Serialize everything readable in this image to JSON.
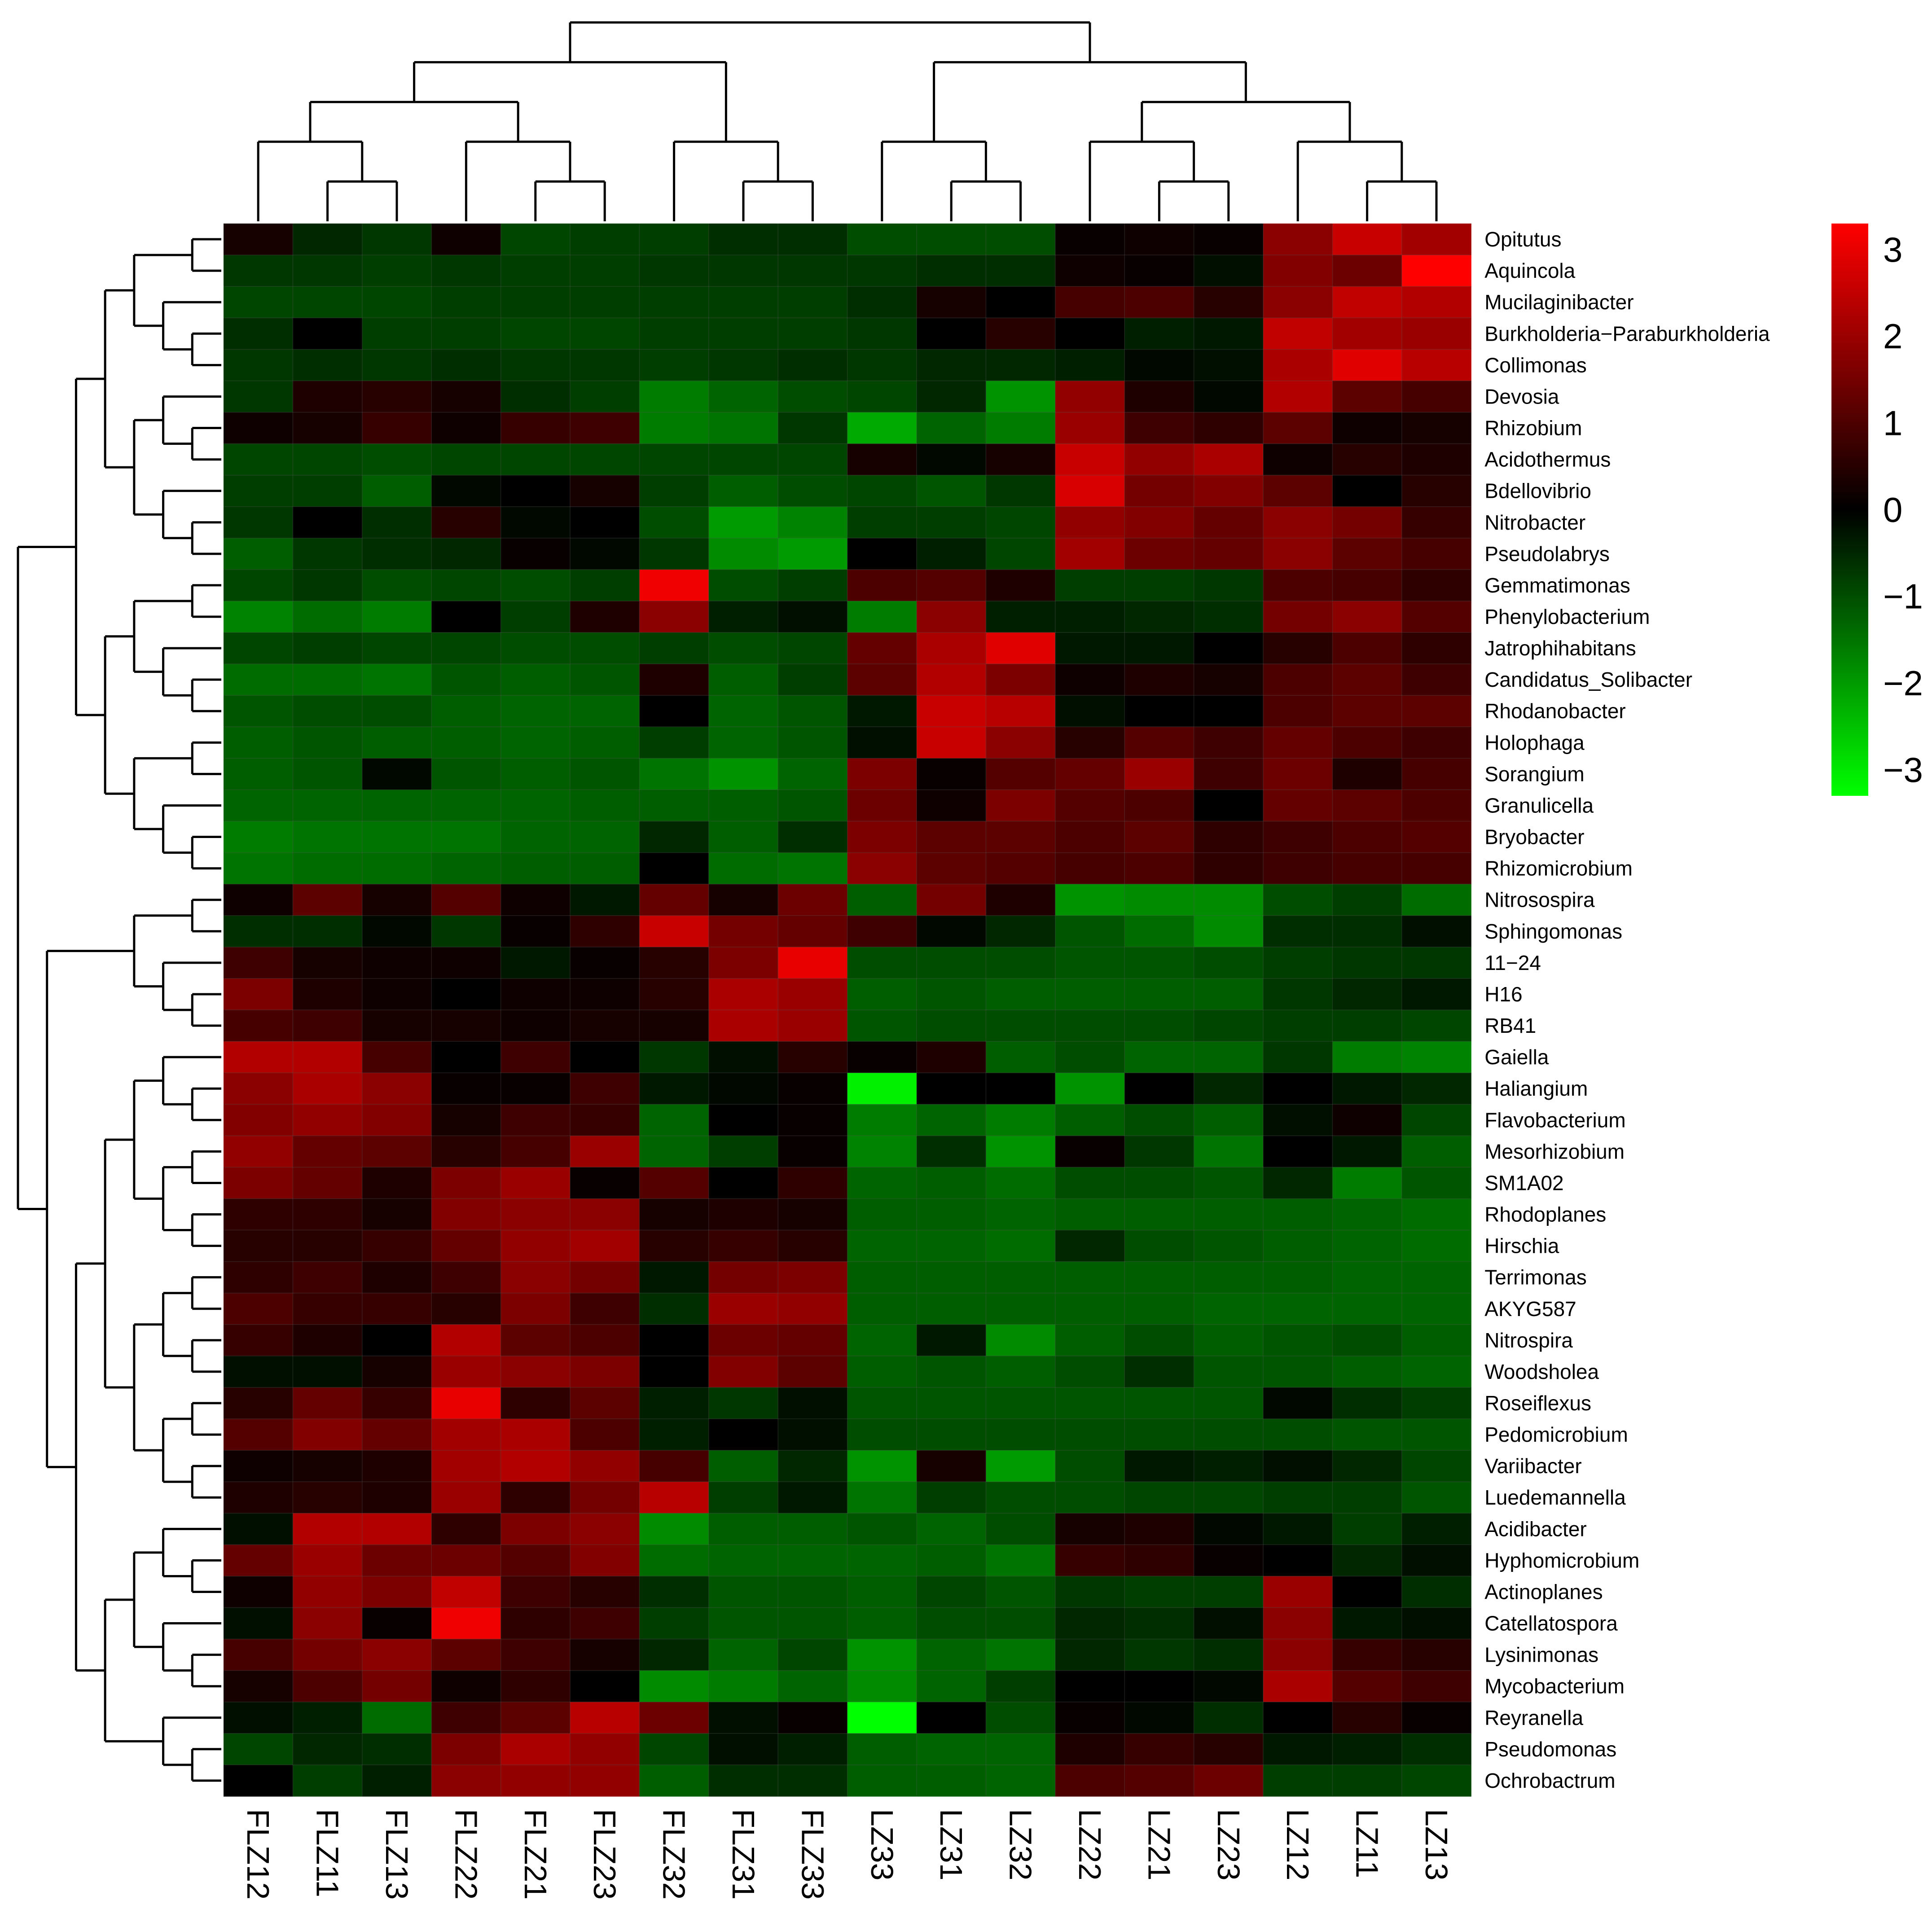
{
  "chart_data": {
    "type": "heatmap",
    "title": "",
    "xlabel": "",
    "ylabel": "",
    "columns": [
      "FLZ12",
      "FLZ11",
      "FLZ13",
      "FLZ22",
      "FLZ21",
      "FLZ23",
      "FLZ32",
      "FLZ31",
      "FLZ33",
      "LZ33",
      "LZ31",
      "LZ32",
      "LZ22",
      "LZ21",
      "LZ23",
      "LZ12",
      "LZ11",
      "LZ13"
    ],
    "rows": [
      "Opitutus",
      "Aquincola",
      "Mucilaginibacter",
      "Burkholderia−Paraburkholderia",
      "Collimonas",
      "Devosia",
      "Rhizobium",
      "Acidothermus",
      "Bdellovibrio",
      "Nitrobacter",
      "Pseudolabrys",
      "Gemmatimonas",
      "Phenylobacterium",
      "Jatrophihabitans",
      "Candidatus_Solibacter",
      "Rhodanobacter",
      "Holophaga",
      "Sorangium",
      "Granulicella",
      "Bryobacter",
      "Rhizomicrobium",
      "Nitrosospira",
      "Sphingomonas",
      "11−24",
      "H16",
      "RB41",
      "Gaiella",
      "Haliangium",
      "Flavobacterium",
      "Mesorhizobium",
      "SM1A02",
      "Rhodoplanes",
      "Hirschia",
      "Terrimonas",
      "AKYG587",
      "Nitrospira",
      "Woodsholea",
      "Roseiflexus",
      "Pedomicrobium",
      "Variibacter",
      "Luedemannella",
      "Acidibacter",
      "Hyphomicrobium",
      "Actinoplanes",
      "Catellatospora",
      "Lysinimonas",
      "Mycobacterium",
      "Reyranella",
      "Pseudomonas",
      "Ochrobactrum"
    ],
    "values": [
      [
        0.3,
        -0.5,
        -0.7,
        0.2,
        -0.9,
        -0.8,
        -0.8,
        -0.6,
        -0.6,
        -1.0,
        -1.0,
        -1.0,
        0.1,
        0.2,
        0.1,
        1.8,
        2.6,
        2.1
      ],
      [
        -0.7,
        -0.7,
        -0.8,
        -0.7,
        -0.8,
        -0.8,
        -0.7,
        -0.7,
        -0.7,
        -0.7,
        -0.6,
        -0.6,
        0.2,
        0.1,
        -0.2,
        1.7,
        1.4,
        3.3
      ],
      [
        -0.9,
        -0.9,
        -0.9,
        -0.8,
        -0.8,
        -0.8,
        -0.8,
        -0.8,
        -0.8,
        -0.6,
        0.3,
        0.0,
        0.9,
        1.0,
        0.5,
        1.8,
        2.5,
        2.3
      ],
      [
        -0.6,
        0.0,
        -0.8,
        -0.8,
        -0.9,
        -0.9,
        -0.8,
        -0.8,
        -0.8,
        -0.7,
        0.0,
        0.5,
        0.0,
        -0.4,
        -0.3,
        2.5,
        2.1,
        2.0
      ],
      [
        -0.7,
        -0.6,
        -0.7,
        -0.6,
        -0.7,
        -0.7,
        -0.8,
        -0.7,
        -0.6,
        -0.7,
        -0.5,
        -0.5,
        -0.4,
        -0.1,
        -0.2,
        2.2,
        2.9,
        2.4
      ],
      [
        -0.7,
        0.4,
        0.5,
        0.3,
        -0.6,
        -0.8,
        -1.6,
        -1.3,
        -1.0,
        -0.9,
        -0.5,
        -1.9,
        1.9,
        0.4,
        -0.1,
        2.3,
        1.2,
        0.9
      ],
      [
        0.2,
        0.3,
        0.7,
        0.2,
        0.7,
        0.8,
        -1.6,
        -1.5,
        -0.7,
        -2.2,
        -1.3,
        -1.6,
        2.0,
        0.8,
        0.6,
        1.2,
        0.2,
        0.3
      ],
      [
        -0.9,
        -0.9,
        -1.0,
        -0.9,
        -0.9,
        -0.9,
        -0.9,
        -0.9,
        -0.9,
        0.3,
        -0.1,
        0.3,
        2.6,
        1.9,
        2.2,
        0.2,
        0.5,
        0.4
      ],
      [
        -0.8,
        -0.8,
        -1.2,
        -0.1,
        0.0,
        0.3,
        -0.8,
        -1.2,
        -1.0,
        -0.9,
        -1.1,
        -0.7,
        2.8,
        1.5,
        1.7,
        1.2,
        0.0,
        0.5
      ],
      [
        -0.7,
        0.0,
        -0.6,
        0.5,
        -0.1,
        0.0,
        -1.0,
        -2.0,
        -1.7,
        -0.8,
        -0.8,
        -0.9,
        1.9,
        1.7,
        1.3,
        1.8,
        1.5,
        0.7
      ],
      [
        -1.2,
        -0.7,
        -0.6,
        -0.5,
        0.1,
        -0.1,
        -0.7,
        -1.8,
        -2.0,
        0.0,
        -0.4,
        -0.9,
        2.1,
        1.4,
        1.3,
        1.8,
        1.2,
        0.9
      ],
      [
        -0.9,
        -0.7,
        -1.0,
        -0.9,
        -1.0,
        -0.8,
        3.1,
        -1.0,
        -0.8,
        1.0,
        1.1,
        0.4,
        -0.8,
        -0.8,
        -0.7,
        1.0,
        0.9,
        0.6
      ],
      [
        -1.7,
        -1.4,
        -1.6,
        0.0,
        -0.8,
        0.4,
        1.8,
        -0.4,
        -0.2,
        -1.6,
        1.8,
        -0.4,
        -0.4,
        -0.5,
        -0.6,
        1.5,
        1.8,
        1.1
      ],
      [
        -0.9,
        -0.8,
        -0.9,
        -0.9,
        -1.0,
        -1.0,
        -0.8,
        -1.0,
        -0.9,
        1.3,
        2.2,
        2.9,
        -0.3,
        -0.3,
        0.0,
        0.5,
        1.0,
        0.6
      ],
      [
        -1.4,
        -1.4,
        -1.5,
        -1.1,
        -1.2,
        -1.1,
        0.4,
        -1.2,
        -0.8,
        1.2,
        2.3,
        1.6,
        0.2,
        0.4,
        0.3,
        1.0,
        1.2,
        0.8
      ],
      [
        -1.1,
        -1.0,
        -1.0,
        -1.2,
        -1.3,
        -1.3,
        0.0,
        -1.3,
        -1.1,
        -0.3,
        2.6,
        2.4,
        -0.2,
        0.0,
        0.0,
        1.0,
        1.2,
        1.2
      ],
      [
        -1.2,
        -1.1,
        -1.2,
        -1.2,
        -1.3,
        -1.2,
        -0.8,
        -1.3,
        -1.1,
        -0.2,
        2.6,
        1.8,
        0.5,
        1.1,
        0.8,
        1.3,
        1.0,
        0.8
      ],
      [
        -1.2,
        -1.1,
        -0.1,
        -1.1,
        -1.2,
        -1.1,
        -1.5,
        -1.9,
        -1.3,
        1.6,
        0.1,
        1.1,
        1.3,
        2.0,
        0.8,
        1.4,
        0.4,
        0.9
      ],
      [
        -1.3,
        -1.3,
        -1.3,
        -1.3,
        -1.3,
        -1.2,
        -1.2,
        -1.2,
        -1.1,
        1.4,
        0.2,
        1.6,
        1.1,
        1.0,
        0.0,
        1.3,
        1.2,
        1.0
      ],
      [
        -1.6,
        -1.5,
        -1.5,
        -1.5,
        -1.3,
        -1.3,
        -0.5,
        -1.2,
        -0.6,
        1.6,
        1.2,
        1.2,
        1.0,
        1.2,
        0.6,
        0.8,
        1.0,
        1.1
      ],
      [
        -1.5,
        -1.4,
        -1.4,
        -1.3,
        -1.2,
        -1.2,
        0.0,
        -1.4,
        -1.5,
        1.8,
        1.2,
        1.1,
        0.9,
        1.0,
        0.6,
        0.8,
        0.9,
        0.9
      ],
      [
        0.2,
        1.2,
        0.3,
        1.1,
        0.2,
        -0.3,
        1.3,
        0.3,
        1.4,
        -1.2,
        1.5,
        0.4,
        -1.9,
        -1.8,
        -1.8,
        -1.0,
        -0.8,
        -1.4
      ],
      [
        -0.6,
        -0.6,
        -0.1,
        -0.7,
        0.1,
        0.6,
        2.6,
        1.5,
        1.3,
        0.8,
        -0.1,
        -0.5,
        -1.1,
        -1.4,
        -1.8,
        -0.6,
        -0.6,
        -0.2
      ],
      [
        0.8,
        0.3,
        0.2,
        0.2,
        -0.3,
        0.1,
        0.5,
        1.6,
        3.0,
        -1.0,
        -1.0,
        -1.0,
        -1.1,
        -1.1,
        -1.0,
        -0.8,
        -0.7,
        -0.7
      ],
      [
        1.6,
        0.4,
        0.2,
        0.0,
        0.2,
        0.2,
        0.5,
        2.2,
        2.0,
        -1.2,
        -1.1,
        -1.2,
        -1.2,
        -1.2,
        -1.2,
        -0.7,
        -0.5,
        -0.3
      ],
      [
        0.9,
        0.8,
        0.3,
        0.3,
        0.2,
        0.3,
        0.3,
        2.2,
        2.0,
        -1.1,
        -1.0,
        -1.0,
        -1.0,
        -1.0,
        -0.9,
        -0.8,
        -0.8,
        -0.9
      ],
      [
        2.3,
        2.3,
        0.9,
        0.0,
        0.8,
        0.0,
        -0.7,
        -0.2,
        0.5,
        0.1,
        0.4,
        -1.2,
        -1.0,
        -1.3,
        -1.3,
        -0.7,
        -1.6,
        -1.7
      ],
      [
        1.8,
        2.2,
        1.8,
        0.1,
        0.1,
        0.8,
        -0.3,
        -0.1,
        0.1,
        -3.1,
        0.0,
        0.0,
        -1.9,
        0.0,
        -0.5,
        0.0,
        -0.3,
        -0.5
      ],
      [
        1.7,
        1.9,
        1.7,
        0.3,
        0.8,
        0.7,
        -1.3,
        0.0,
        0.1,
        -1.6,
        -1.3,
        -1.6,
        -1.2,
        -1.0,
        -1.2,
        -0.2,
        0.2,
        -0.9
      ],
      [
        1.9,
        1.3,
        1.2,
        0.5,
        0.9,
        2.0,
        -1.3,
        -0.8,
        0.1,
        -1.7,
        -0.6,
        -1.9,
        0.1,
        -0.7,
        -1.5,
        0.0,
        -0.3,
        -1.2
      ],
      [
        1.6,
        1.3,
        0.4,
        1.6,
        2.0,
        0.1,
        1.1,
        0.0,
        0.6,
        -1.3,
        -1.2,
        -1.4,
        -1.0,
        -1.0,
        -1.1,
        -0.5,
        -1.6,
        -1.1
      ],
      [
        0.6,
        0.6,
        0.3,
        1.7,
        1.8,
        1.8,
        0.3,
        0.4,
        0.3,
        -1.2,
        -1.2,
        -1.3,
        -1.2,
        -1.2,
        -1.2,
        -1.2,
        -1.3,
        -1.4
      ],
      [
        0.5,
        0.5,
        0.7,
        1.3,
        1.9,
        2.1,
        0.5,
        0.7,
        0.5,
        -1.3,
        -1.3,
        -1.4,
        -0.5,
        -1.0,
        -1.1,
        -1.2,
        -1.3,
        -1.4
      ],
      [
        0.6,
        0.8,
        0.4,
        0.8,
        1.8,
        1.5,
        -0.3,
        1.5,
        1.6,
        -1.2,
        -1.2,
        -1.2,
        -1.2,
        -1.2,
        -1.2,
        -1.2,
        -1.3,
        -1.3
      ],
      [
        1.0,
        0.7,
        0.7,
        0.5,
        1.6,
        0.8,
        -0.6,
        2.0,
        1.9,
        -1.2,
        -1.2,
        -1.2,
        -1.2,
        -1.2,
        -1.3,
        -1.3,
        -1.3,
        -1.3
      ],
      [
        0.7,
        0.4,
        0.0,
        2.3,
        1.2,
        1.0,
        0.0,
        1.4,
        1.3,
        -1.3,
        -0.3,
        -1.8,
        -1.2,
        -1.0,
        -1.2,
        -1.1,
        -1.0,
        -1.2
      ],
      [
        -0.2,
        -0.2,
        0.3,
        2.0,
        1.8,
        1.6,
        0.0,
        1.7,
        1.2,
        -1.2,
        -1.1,
        -1.2,
        -1.0,
        -0.6,
        -1.1,
        -1.1,
        -1.2,
        -1.3
      ],
      [
        0.5,
        1.3,
        0.7,
        3.0,
        0.6,
        1.2,
        -0.4,
        -0.7,
        -0.2,
        -1.1,
        -1.1,
        -1.1,
        -1.1,
        -1.1,
        -1.1,
        -0.1,
        -0.6,
        -0.8
      ],
      [
        1.1,
        1.7,
        1.3,
        2.1,
        2.2,
        1.0,
        -0.4,
        0.0,
        -0.2,
        -1.0,
        -1.0,
        -1.0,
        -1.0,
        -1.0,
        -1.0,
        -1.0,
        -1.1,
        -1.1
      ],
      [
        0.2,
        0.3,
        0.4,
        2.1,
        2.3,
        1.9,
        0.9,
        -1.2,
        -0.5,
        -1.9,
        0.3,
        -2.0,
        -1.0,
        -0.3,
        -0.4,
        -0.2,
        -0.5,
        -0.9
      ],
      [
        0.4,
        0.5,
        0.4,
        2.0,
        0.6,
        1.5,
        2.4,
        -0.8,
        -0.3,
        -1.5,
        -0.8,
        -1.0,
        -1.0,
        -0.9,
        -0.9,
        -0.8,
        -0.8,
        -1.1
      ],
      [
        -0.2,
        2.3,
        2.3,
        0.6,
        1.6,
        1.8,
        -1.8,
        -1.2,
        -1.2,
        -1.1,
        -1.3,
        -1.0,
        0.3,
        0.4,
        -0.1,
        -0.3,
        -0.8,
        -0.4
      ],
      [
        1.3,
        2.0,
        1.4,
        1.4,
        1.1,
        1.7,
        -1.4,
        -1.3,
        -1.3,
        -1.3,
        -1.2,
        -1.5,
        0.7,
        0.6,
        0.1,
        0.0,
        -0.5,
        -0.2
      ],
      [
        0.2,
        1.9,
        1.6,
        2.5,
        0.8,
        0.5,
        -0.6,
        -1.1,
        -1.1,
        -1.2,
        -0.9,
        -1.1,
        -0.7,
        -0.8,
        -0.8,
        2.0,
        0.0,
        -0.6
      ],
      [
        -0.2,
        1.8,
        0.1,
        3.1,
        0.6,
        0.8,
        -0.8,
        -1.1,
        -1.1,
        -1.2,
        -1.0,
        -1.0,
        -0.5,
        -0.6,
        -0.2,
        1.8,
        -0.3,
        -0.2
      ],
      [
        0.9,
        1.5,
        1.8,
        1.2,
        0.8,
        0.3,
        -0.5,
        -1.3,
        -0.9,
        -1.9,
        -1.3,
        -1.5,
        -0.5,
        -0.7,
        -0.6,
        1.8,
        0.7,
        0.5
      ],
      [
        0.3,
        1.0,
        1.5,
        0.2,
        0.6,
        0.0,
        -1.8,
        -1.6,
        -1.3,
        -1.8,
        -1.3,
        -0.8,
        0.0,
        0.0,
        -0.1,
        2.2,
        1.1,
        0.8
      ],
      [
        -0.2,
        -0.4,
        -1.4,
        0.8,
        1.2,
        2.4,
        1.4,
        -0.2,
        0.1,
        -3.3,
        0.0,
        -1.0,
        0.1,
        -0.1,
        -0.6,
        0.0,
        0.5,
        0.1
      ],
      [
        -0.9,
        -0.5,
        -0.6,
        1.6,
        2.2,
        1.9,
        -0.9,
        -0.2,
        -0.4,
        -1.2,
        -1.3,
        -1.3,
        0.4,
        0.7,
        0.5,
        -0.3,
        -0.4,
        -0.6
      ],
      [
        0.0,
        -0.8,
        -0.4,
        1.8,
        1.9,
        1.9,
        -1.2,
        -0.6,
        -0.6,
        -1.2,
        -1.2,
        -1.3,
        1.0,
        1.1,
        1.4,
        -0.8,
        -0.8,
        -0.9
      ]
    ],
    "color_scale": {
      "min": -3.3,
      "max": 3.3,
      "low_color": "#00ff00",
      "mid_color": "#000000",
      "high_color": "#ff0000",
      "ticks": [
        3,
        2,
        1,
        0,
        -1,
        -2,
        -3
      ],
      "tick_labels": [
        "3",
        "2",
        "1",
        "0",
        "−1",
        "−2",
        "−3"
      ]
    },
    "column_dendrogram": "(((FLZ12,(FLZ11,FLZ13)),(FLZ22,(FLZ21,FLZ23))),(FLZ32,(FLZ31,FLZ33))),((LZ33,(LZ31,LZ32)),((LZ22,(LZ21,LZ23)),(LZ12,(LZ11,LZ13))))",
    "row_dendrogram": "cluster tree over rows (left side)",
    "legend_position": "top-right",
    "grid": false
  }
}
